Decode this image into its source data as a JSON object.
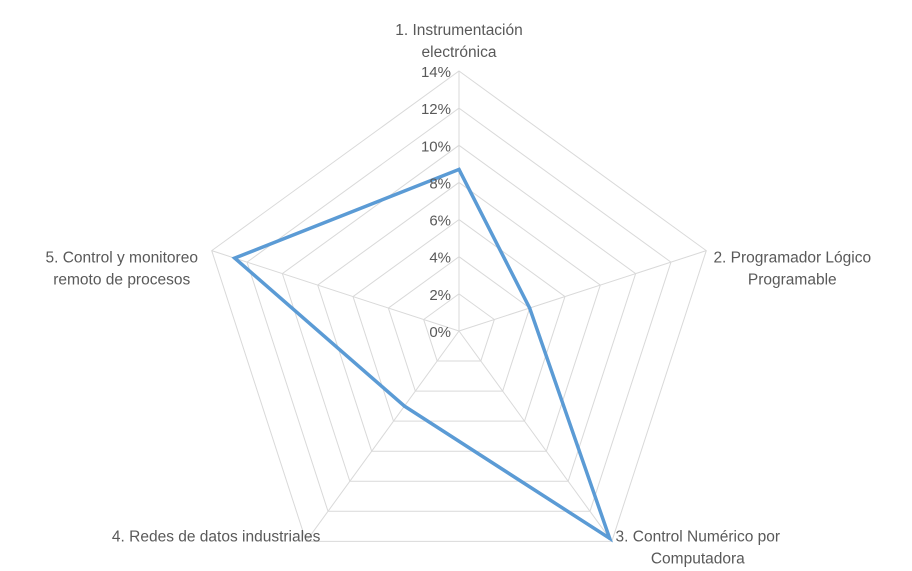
{
  "chart_data": {
    "type": "radar",
    "categories": [
      [
        "1. Instrumentación",
        "electrónica"
      ],
      [
        "2. Programador Lógico",
        "Programable"
      ],
      [
        "3. Control Numérico por",
        "Computadora"
      ],
      [
        "4. Redes de datos industriales"
      ],
      [
        "5. Control y monitoreo",
        "remoto de procesos"
      ]
    ],
    "tick_labels": [
      "0%",
      "2%",
      "4%",
      "6%",
      "8%",
      "10%",
      "12%",
      "14%"
    ],
    "rlim": [
      0,
      0.14
    ],
    "grid": true,
    "series": [
      {
        "values": [
          0.087,
          0.04,
          0.138,
          0.05,
          0.127
        ],
        "color": "#5b9bd5"
      }
    ]
  }
}
